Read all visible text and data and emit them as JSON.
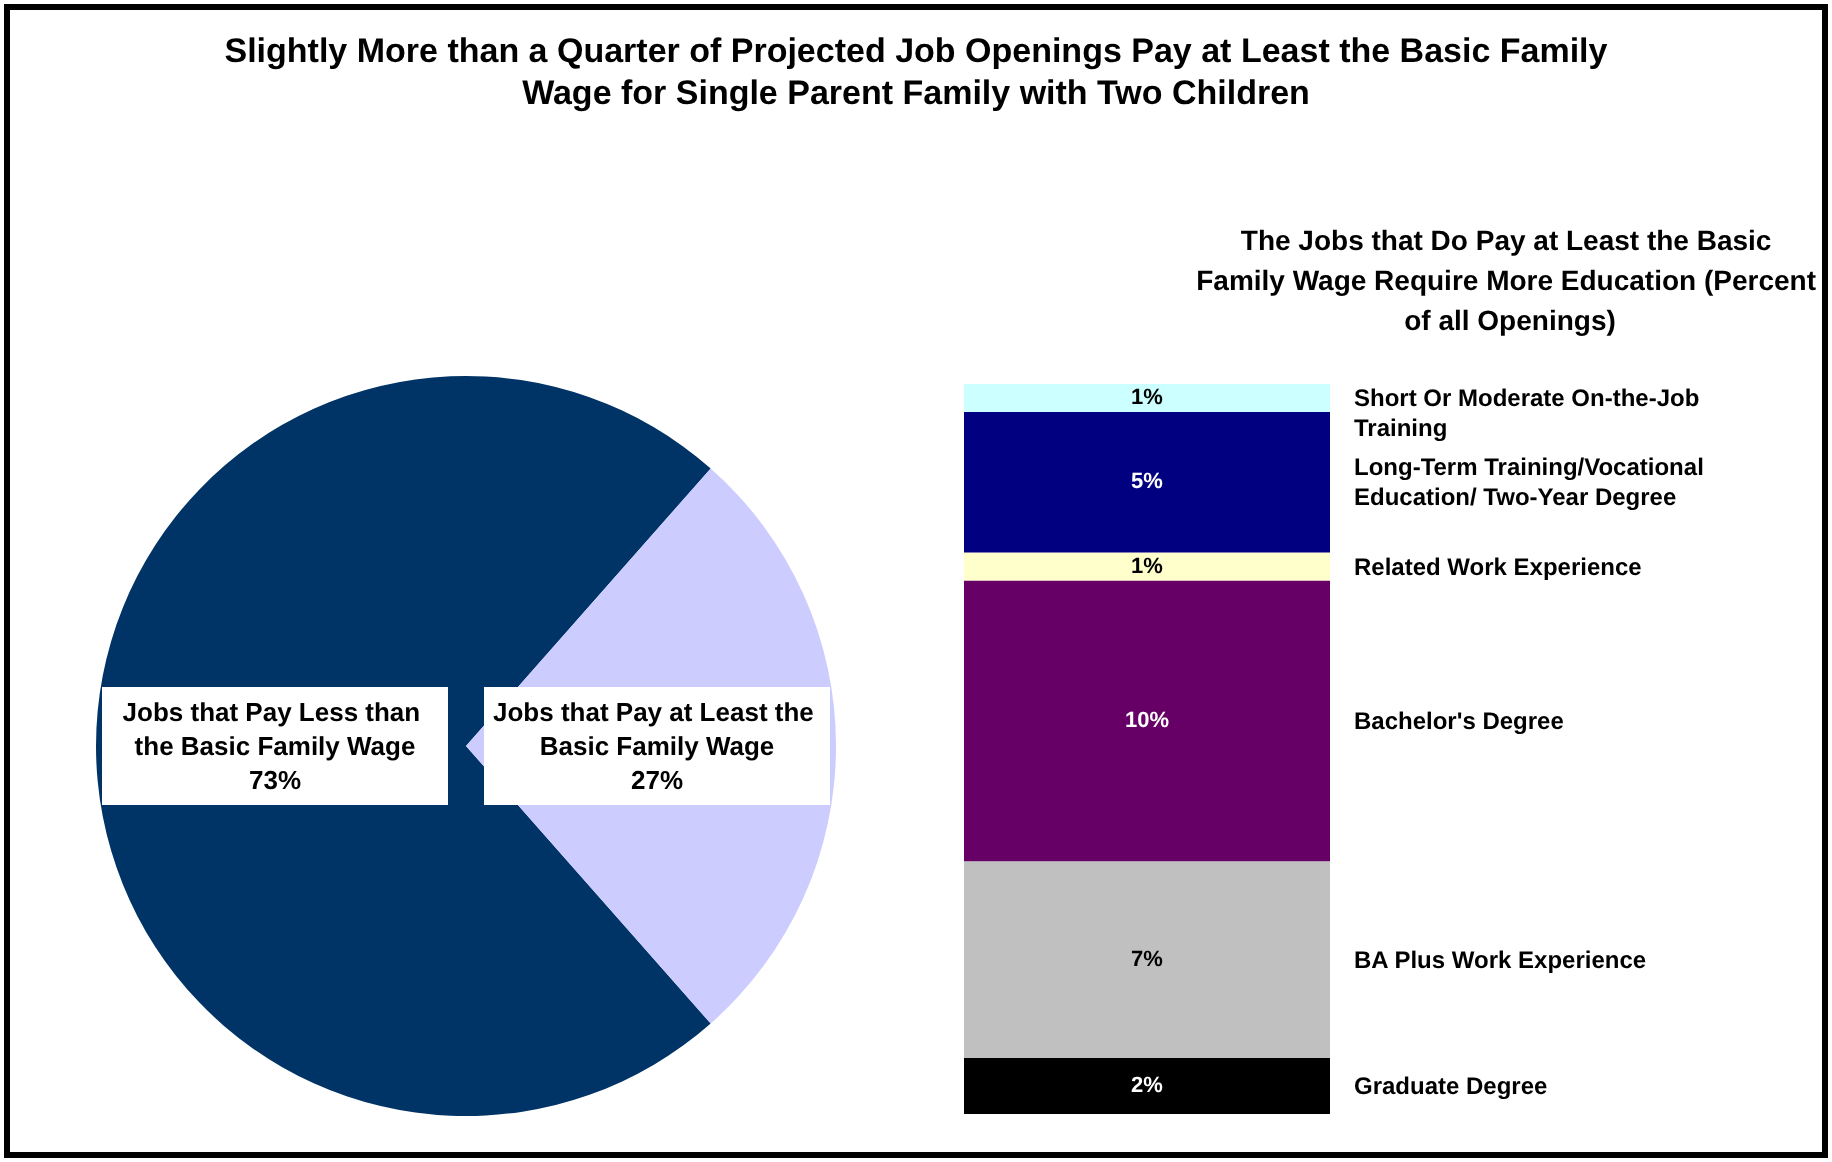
{
  "chart_data": [
    {
      "type": "pie",
      "title": "Slightly More than a Quarter of Projected Job Openings Pay at Least the Basic Family Wage for Single Parent Family with Two Children",
      "categories": [
        "Jobs that Pay Less than the Basic Family Wage",
        "Jobs that Pay at Least the Basic Family Wage"
      ],
      "values": [
        73,
        27
      ],
      "colors": [
        "#003366",
        "#ccccff"
      ],
      "value_labels": [
        "73%",
        "27%"
      ]
    },
    {
      "type": "bar",
      "title": "The Jobs that Do Pay at Least the Basic Family Wage Require More Education (Percent of all Openings)",
      "stacked": true,
      "categories": [
        null
      ],
      "series": [
        {
          "name": "Graduate Degree",
          "color": "#000000",
          "values": [
            2
          ],
          "value_labels": [
            "2%"
          ]
        },
        {
          "name": "BA Plus Work Experience",
          "color": "#c0c0c0",
          "values": [
            7
          ],
          "value_labels": [
            "7%"
          ]
        },
        {
          "name": "Bachelor's Degree",
          "color": "#660066",
          "values": [
            10
          ],
          "value_labels": [
            "10%"
          ]
        },
        {
          "name": "Related Work Experience",
          "color": "#ffffcc",
          "values": [
            1
          ],
          "value_labels": [
            "1%"
          ]
        },
        {
          "name": "Long-Term Training/Vocational Education/ Two-Year Degree",
          "color": "#000080",
          "values": [
            5
          ],
          "value_labels": [
            "5%"
          ]
        },
        {
          "name": "Short Or Moderate On-the-Job Training",
          "color": "#ccffff",
          "values": [
            1
          ],
          "value_labels": [
            "1%"
          ]
        }
      ]
    }
  ]
}
